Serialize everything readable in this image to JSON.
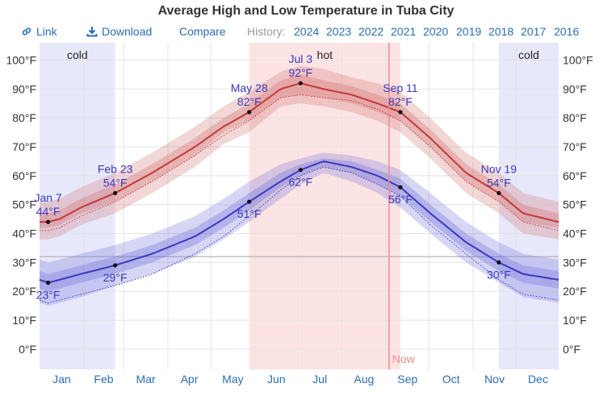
{
  "title": "Average High and Low Temperature in Tuba City",
  "toolbar": {
    "link_label": "Link",
    "download_label": "Download",
    "compare_label": "Compare",
    "history_label": "History:",
    "years": [
      "2024",
      "2023",
      "2022",
      "2021",
      "2020",
      "2019",
      "2018",
      "2017",
      "2016"
    ]
  },
  "colors": {
    "high_line": "#c0393b",
    "low_line": "#3a3aba",
    "hot_band": "#fde4e4",
    "cold_band": "#e8e8fb",
    "now_line": "#f08b8b",
    "link": "#2a6db5"
  },
  "chart_data": {
    "type": "line",
    "title": "Average High and Low Temperature in Tuba City",
    "x_unit": "day_of_year",
    "ylim": [
      -7,
      106
    ],
    "y_ticks": [
      0,
      10,
      20,
      30,
      40,
      50,
      60,
      70,
      80,
      90,
      100
    ],
    "y_tick_labels": [
      "0°F",
      "10°F",
      "20°F",
      "30°F",
      "40°F",
      "50°F",
      "60°F",
      "70°F",
      "80°F",
      "90°F",
      "100°F"
    ],
    "months": [
      "Jan",
      "Feb",
      "Mar",
      "Apr",
      "May",
      "Jun",
      "Jul",
      "Aug",
      "Sep",
      "Oct",
      "Nov",
      "Dec"
    ],
    "grid": true,
    "freezing_line": 32,
    "series": [
      {
        "key": "high",
        "x": [
          1,
          7,
          15,
          30,
          54,
          80,
          110,
          130,
          148,
          170,
          184,
          200,
          220,
          238,
          254,
          275,
          300,
          323,
          340,
          365
        ],
        "values": [
          44,
          44,
          45,
          49,
          54,
          61,
          70,
          77,
          82,
          90,
          92,
          90,
          88,
          85,
          82,
          73,
          61,
          54,
          47,
          44
        ],
        "p25": [
          42,
          42,
          43,
          47,
          51,
          58,
          67,
          75,
          79,
          87,
          88,
          87,
          85,
          82,
          79,
          70,
          58,
          51,
          44,
          42
        ],
        "p75": [
          47,
          47,
          48,
          52,
          57,
          64,
          73,
          80,
          85,
          93,
          95,
          93,
          91,
          88,
          85,
          76,
          64,
          57,
          50,
          47
        ],
        "p10": [
          38,
          38,
          39,
          43,
          47,
          54,
          63,
          71,
          75,
          84,
          85,
          84,
          82,
          79,
          75,
          66,
          54,
          47,
          40,
          38
        ],
        "p90": [
          51,
          51,
          52,
          56,
          61,
          68,
          77,
          84,
          89,
          96,
          98,
          97,
          94,
          92,
          89,
          80,
          68,
          61,
          54,
          51
        ],
        "dotted": [
          41,
          41,
          42,
          46,
          51,
          58,
          67,
          74,
          79,
          87,
          88,
          87,
          86,
          83,
          79,
          70,
          58,
          51,
          44,
          41
        ]
      },
      {
        "key": "low",
        "x": [
          1,
          7,
          15,
          30,
          54,
          80,
          110,
          130,
          148,
          170,
          184,
          200,
          220,
          238,
          254,
          275,
          300,
          323,
          340,
          365
        ],
        "values": [
          24,
          23,
          24,
          26,
          29,
          33,
          39,
          45,
          51,
          58,
          62,
          65,
          63,
          60,
          56,
          47,
          37,
          30,
          26,
          24
        ],
        "p25": [
          21,
          20,
          21,
          23,
          26,
          30,
          36,
          42,
          48,
          56,
          60,
          63,
          61,
          57,
          53,
          44,
          34,
          27,
          23,
          21
        ],
        "p75": [
          27,
          26,
          27,
          29,
          32,
          36,
          42,
          48,
          54,
          61,
          64,
          66,
          65,
          62,
          59,
          50,
          40,
          33,
          29,
          27
        ],
        "p10": [
          16,
          15,
          16,
          18,
          22,
          26,
          32,
          38,
          44,
          52,
          57,
          61,
          58,
          54,
          49,
          40,
          30,
          23,
          18,
          16
        ],
        "p90": [
          31,
          30,
          31,
          33,
          36,
          40,
          46,
          52,
          58,
          64,
          66,
          68,
          67,
          65,
          62,
          54,
          44,
          37,
          33,
          31
        ],
        "dotted": [
          17,
          16,
          17,
          19,
          22,
          26,
          33,
          39,
          46,
          55,
          60,
          63,
          61,
          57,
          53,
          43,
          33,
          24,
          19,
          17
        ]
      }
    ],
    "annotations": [
      {
        "series": "high",
        "day": 7,
        "date": "Jan 7",
        "value": 44,
        "label": "44°F",
        "pos": "above"
      },
      {
        "series": "high",
        "day": 54,
        "date": "Feb 23",
        "value": 54,
        "label": "54°F",
        "pos": "above"
      },
      {
        "series": "high",
        "day": 148,
        "date": "May 28",
        "value": 82,
        "label": "82°F",
        "pos": "above"
      },
      {
        "series": "high",
        "day": 184,
        "date": "Jul 3",
        "value": 92,
        "label": "92°F",
        "pos": "above"
      },
      {
        "series": "high",
        "day": 254,
        "date": "Sep 11",
        "value": 82,
        "label": "82°F",
        "pos": "above"
      },
      {
        "series": "high",
        "day": 323,
        "date": "Nov 19",
        "value": 54,
        "label": "54°F",
        "pos": "above"
      },
      {
        "series": "low",
        "day": 7,
        "date": "",
        "value": 23,
        "label": "23°F",
        "pos": "below"
      },
      {
        "series": "low",
        "day": 54,
        "date": "",
        "value": 29,
        "label": "29°F",
        "pos": "below"
      },
      {
        "series": "low",
        "day": 148,
        "date": "",
        "value": 51,
        "label": "51°F",
        "pos": "below"
      },
      {
        "series": "low",
        "day": 184,
        "date": "",
        "value": 62,
        "label": "62°F",
        "pos": "below"
      },
      {
        "series": "low",
        "day": 254,
        "date": "",
        "value": 56,
        "label": "56°F",
        "pos": "below"
      },
      {
        "series": "low",
        "day": 323,
        "date": "",
        "value": 30,
        "label": "30°F",
        "pos": "below"
      }
    ],
    "bands": [
      {
        "label": "cold",
        "start_day": 1,
        "end_day": 54,
        "kind": "cold"
      },
      {
        "label": "hot",
        "start_day": 148,
        "end_day": 254,
        "kind": "hot"
      },
      {
        "label": "cold",
        "start_day": 323,
        "end_day": 365,
        "kind": "cold"
      }
    ],
    "now": {
      "label": "Now",
      "day": 246
    }
  }
}
